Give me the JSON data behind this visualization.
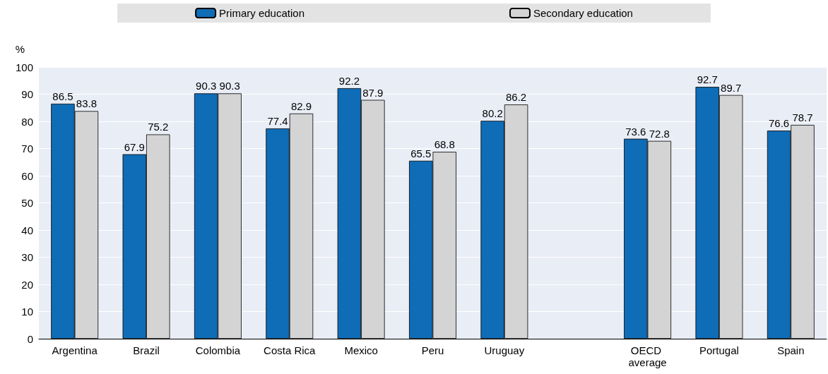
{
  "chart_data": {
    "type": "bar",
    "ylabel": "%",
    "categories": [
      "Argentina",
      "Brazil",
      "Colombia",
      "Costa Rica",
      "Mexico",
      "Peru",
      "Uruguay",
      null,
      "OECD average",
      "Portugal",
      "Spain"
    ],
    "series": [
      {
        "name": "Primary education",
        "color": "#0f6cb6",
        "values": [
          86.5,
          67.9,
          90.3,
          77.4,
          92.2,
          65.5,
          80.2,
          null,
          73.6,
          92.7,
          76.6
        ]
      },
      {
        "name": "Secondary education",
        "color": "#d4d4d4",
        "values": [
          83.8,
          75.2,
          90.3,
          82.9,
          87.9,
          68.8,
          86.2,
          null,
          72.8,
          89.7,
          78.7
        ]
      }
    ],
    "ylim": [
      0,
      100
    ],
    "yticks": [
      0,
      10,
      20,
      30,
      40,
      50,
      60,
      70,
      80,
      90,
      100
    ],
    "grid": "y",
    "legend": "top",
    "data_labels": true
  }
}
